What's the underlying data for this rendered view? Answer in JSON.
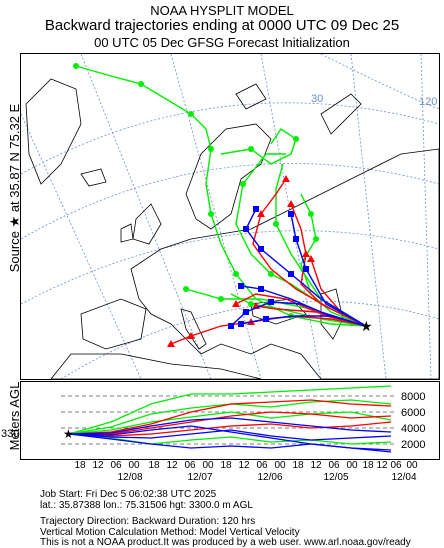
{
  "title": {
    "line1": "NOAA HYSPLIT MODEL",
    "line2": "Backward trajectories ending at 0000 UTC 09 Dec 25",
    "line3": "00 UTC 05 Dec    GFSG  Forecast Initialization"
  },
  "source_label": "Source ★ at  35.87 N   75.32 E",
  "map": {
    "graticule_labels": [
      "30",
      "120"
    ],
    "source_marker": "★",
    "colors": {
      "red": "#ff0000",
      "blue": "#0000ff",
      "green": "#00ee00",
      "land": "#000000",
      "grid": "#6a8fd0"
    }
  },
  "profile": {
    "y_title": "Meters AGL",
    "start_height_label": "3300",
    "y_ticks": [
      "8000",
      "6000",
      "4000",
      "2000"
    ],
    "hour_ticks": [
      "18",
      "12",
      "06",
      "00",
      "18",
      "12",
      "06",
      "00",
      "18",
      "12",
      "06",
      "00",
      "18",
      "12",
      "06",
      "00",
      "18",
      "12",
      "06",
      "00"
    ],
    "date_ticks": [
      "12/08",
      "12/07",
      "12/06",
      "12/05",
      "12/04"
    ]
  },
  "info": {
    "job_start": "Job Start: Fri Dec  5 06:02:38 UTC 2025",
    "location": "lat.: 35.87388   lon.: 75.31506   hgt: 3300.0 m AGL",
    "direction": "Trajectory Direction: Backward        Duration: 120 hrs",
    "vertical": "Vertical Motion Calculation Method: Model Vertical Velocity",
    "disclaimer": "This is not a NOAA product.It was produced by a web user. www.arl.noaa.gov/ready"
  }
}
